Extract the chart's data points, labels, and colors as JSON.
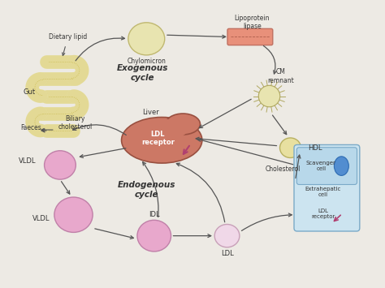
{
  "background_color": "#edeae4",
  "colors": {
    "background": "#edeae4",
    "gut_fill": "#f5f0c8",
    "gut_stroke": "#c8b84a",
    "chylomicron_fill": "#e8e4b0",
    "chylomicron_stroke": "#c0b870",
    "lipoprotein_fill": "#e8907a",
    "lipoprotein_stroke": "#c07060",
    "lipoprotein_dash": "#a05040",
    "cm_remnant_fill": "#e8e4b0",
    "cm_remnant_stroke": "#b0a860",
    "liver_fill": "#cc7865",
    "liver_stroke": "#995040",
    "hdl_fill": "#e8e0a0",
    "hdl_stroke": "#b8b060",
    "scavenger_fill": "#b8d8ea",
    "scavenger_stroke": "#7aaac8",
    "extrahepatic_fill": "#cce4f0",
    "extrahepatic_stroke": "#7aaac8",
    "vldl_fill": "#e8a8cc",
    "vldl_stroke": "#c080a8",
    "idl_fill": "#e8a8cc",
    "idl_stroke": "#c080a8",
    "ldl_fill": "#f0d8e8",
    "ldl_stroke": "#c8a0b8",
    "arrow_color": "#555555",
    "text_color": "#333333",
    "ldl_receptor_tri": "#b04070",
    "blue_bubble": "#4080cc"
  },
  "labels": {
    "dietary_lipid": "Dietary lipid",
    "gut": "Gut",
    "faeces": "Faeces",
    "chylomicron": "Chylomicron",
    "lipoprotein_lipase": "Lipoprotein\nlipase",
    "exogenous_cycle": "Exogenous\ncycle",
    "cm_remnant": "CM\nremnant",
    "liver": "Liver",
    "ldl_receptor_liver": "LDL\nreceptor",
    "hdl": "HDL",
    "cholesterol": "Cholesterol",
    "scavenger_cell": "Scavenger\ncell",
    "extrahepatic_cell": "Extrahepatic\ncell",
    "ldl_receptor_ext": "LDL\nreceptor",
    "biliary_cholesterol": "Biliary\ncholesterol",
    "vldl1": "VLDL",
    "vldl2": "VLDL",
    "endogenous_cycle": "Endogenous\ncycle",
    "idl": "IDL",
    "ldl": "LDL"
  }
}
